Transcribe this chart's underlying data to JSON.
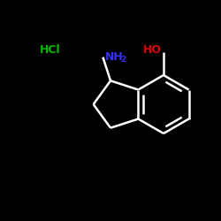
{
  "background_color": "#000000",
  "bond_color": "#ffffff",
  "bond_width": 1.8,
  "hcl_color": "#00bb00",
  "ho_color": "#dd0000",
  "nh2_color": "#3333ff",
  "figsize": [
    2.5,
    2.5
  ],
  "dpi": 100,
  "hcl_text": "HCl",
  "ho_text": "HO",
  "nh_text": "NH",
  "sub2_text": "2"
}
